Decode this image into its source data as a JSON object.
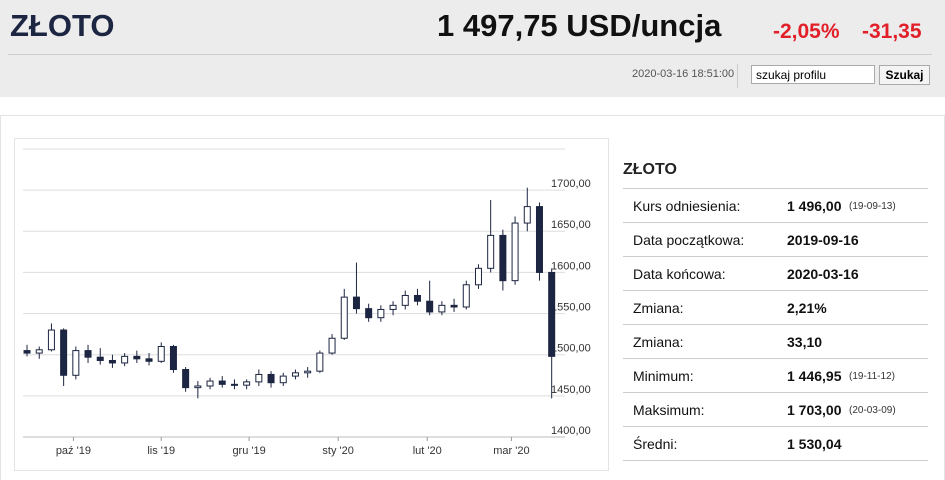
{
  "header": {
    "title": "ZŁOTO",
    "price": "1 497,75 USD/uncja",
    "change_pct": "-2,05%",
    "change_abs": "-31,35",
    "timestamp": "2020-03-16 18:51:00",
    "search_placeholder": "szukaj profilu",
    "search_button": "Szukaj"
  },
  "chart_data": {
    "type": "candlestick",
    "up_color": "#ffffff",
    "down_color": "#1c2541",
    "line_color": "#1c2541",
    "grid": true,
    "ylim": [
      1400,
      1750
    ],
    "yticks": [
      {
        "value": 1400,
        "label": "1400,00"
      },
      {
        "value": 1450,
        "label": "1450,00"
      },
      {
        "value": 1500,
        "label": "1500,00"
      },
      {
        "value": 1550,
        "label": "1550,00"
      },
      {
        "value": 1600,
        "label": "1600,00"
      },
      {
        "value": 1650,
        "label": "1650,00"
      },
      {
        "value": 1700,
        "label": "1700,00"
      },
      1750
    ],
    "xlim": [
      -0.33,
      43.6
    ],
    "xticks": [
      {
        "value": 3.8,
        "label": "paź '19"
      },
      {
        "value": 11,
        "label": "lis '19"
      },
      {
        "value": 18.2,
        "label": "gru '19"
      },
      {
        "value": 25.5,
        "label": "sty '20"
      },
      {
        "value": 32.8,
        "label": "lut '20"
      },
      {
        "value": 39.7,
        "label": "mar '20"
      }
    ],
    "candles": [
      {
        "open": 1505,
        "high": 1512,
        "low": 1498,
        "close": 1502
      },
      {
        "open": 1502,
        "high": 1510,
        "low": 1495,
        "close": 1506
      },
      {
        "open": 1506,
        "high": 1538,
        "low": 1504,
        "close": 1530
      },
      {
        "open": 1530,
        "high": 1532,
        "low": 1462,
        "close": 1475
      },
      {
        "open": 1475,
        "high": 1510,
        "low": 1470,
        "close": 1505
      },
      {
        "open": 1505,
        "high": 1512,
        "low": 1490,
        "close": 1497
      },
      {
        "open": 1497,
        "high": 1508,
        "low": 1488,
        "close": 1493
      },
      {
        "open": 1493,
        "high": 1500,
        "low": 1484,
        "close": 1490
      },
      {
        "open": 1490,
        "high": 1502,
        "low": 1486,
        "close": 1498
      },
      {
        "open": 1498,
        "high": 1505,
        "low": 1490,
        "close": 1495
      },
      {
        "open": 1495,
        "high": 1502,
        "low": 1487,
        "close": 1492
      },
      {
        "open": 1492,
        "high": 1515,
        "low": 1490,
        "close": 1510
      },
      {
        "open": 1510,
        "high": 1512,
        "low": 1478,
        "close": 1482
      },
      {
        "open": 1482,
        "high": 1485,
        "low": 1455,
        "close": 1460
      },
      {
        "open": 1460,
        "high": 1468,
        "low": 1447,
        "close": 1462
      },
      {
        "open": 1462,
        "high": 1472,
        "low": 1458,
        "close": 1468
      },
      {
        "open": 1468,
        "high": 1474,
        "low": 1460,
        "close": 1464
      },
      {
        "open": 1464,
        "high": 1470,
        "low": 1458,
        "close": 1463
      },
      {
        "open": 1463,
        "high": 1470,
        "low": 1458,
        "close": 1467
      },
      {
        "open": 1467,
        "high": 1482,
        "low": 1462,
        "close": 1476
      },
      {
        "open": 1476,
        "high": 1480,
        "low": 1460,
        "close": 1466
      },
      {
        "open": 1466,
        "high": 1478,
        "low": 1462,
        "close": 1474
      },
      {
        "open": 1474,
        "high": 1482,
        "low": 1470,
        "close": 1478
      },
      {
        "open": 1478,
        "high": 1485,
        "low": 1472,
        "close": 1480
      },
      {
        "open": 1480,
        "high": 1505,
        "low": 1478,
        "close": 1502
      },
      {
        "open": 1502,
        "high": 1525,
        "low": 1500,
        "close": 1520
      },
      {
        "open": 1520,
        "high": 1580,
        "low": 1518,
        "close": 1570
      },
      {
        "open": 1570,
        "high": 1612,
        "low": 1550,
        "close": 1556
      },
      {
        "open": 1556,
        "high": 1562,
        "low": 1540,
        "close": 1545
      },
      {
        "open": 1545,
        "high": 1560,
        "low": 1540,
        "close": 1555
      },
      {
        "open": 1555,
        "high": 1565,
        "low": 1548,
        "close": 1560
      },
      {
        "open": 1560,
        "high": 1578,
        "low": 1555,
        "close": 1572
      },
      {
        "open": 1572,
        "high": 1580,
        "low": 1560,
        "close": 1565
      },
      {
        "open": 1565,
        "high": 1590,
        "low": 1548,
        "close": 1552
      },
      {
        "open": 1552,
        "high": 1565,
        "low": 1548,
        "close": 1560
      },
      {
        "open": 1560,
        "high": 1568,
        "low": 1552,
        "close": 1558
      },
      {
        "open": 1558,
        "high": 1590,
        "low": 1555,
        "close": 1585
      },
      {
        "open": 1585,
        "high": 1610,
        "low": 1580,
        "close": 1605
      },
      {
        "open": 1605,
        "high": 1688,
        "low": 1600,
        "close": 1645
      },
      {
        "open": 1645,
        "high": 1652,
        "low": 1578,
        "close": 1590
      },
      {
        "open": 1590,
        "high": 1668,
        "low": 1585,
        "close": 1660
      },
      {
        "open": 1660,
        "high": 1703,
        "low": 1650,
        "close": 1680
      },
      {
        "open": 1680,
        "high": 1685,
        "low": 1590,
        "close": 1600
      },
      {
        "open": 1600,
        "high": 1605,
        "low": 1447,
        "close": 1498
      }
    ]
  },
  "table": {
    "title": "ZŁOTO",
    "rows": [
      {
        "label": "Kurs odniesienia:",
        "value": "1 496,00",
        "note": "(19-09-13)"
      },
      {
        "label": "Data początkowa:",
        "value": "2019-09-16"
      },
      {
        "label": "Data końcowa:",
        "value": "2020-03-16"
      },
      {
        "label": "Zmiana:",
        "value": "2,21%"
      },
      {
        "label": "Zmiana:",
        "value": "33,10"
      },
      {
        "label": "Minimum:",
        "value": "1 446,95",
        "note": "(19-11-12)"
      },
      {
        "label": "Maksimum:",
        "value": "1 703,00",
        "note": "(20-03-09)"
      },
      {
        "label": "Średni:",
        "value": "1 530,04"
      }
    ]
  }
}
